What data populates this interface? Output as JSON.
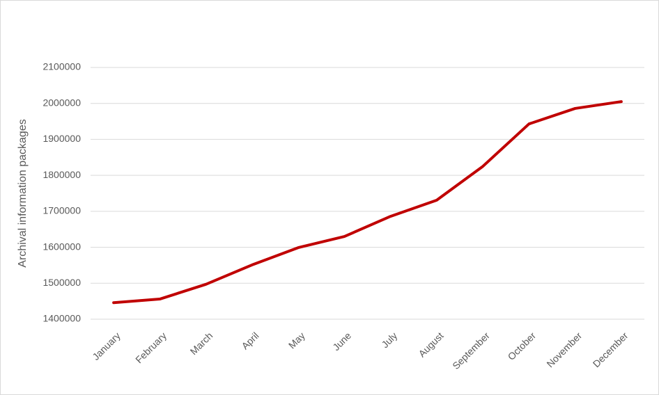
{
  "chart_data": {
    "type": "line",
    "y_label": "Archival information packages",
    "categories": [
      "January",
      "February",
      "March",
      "April",
      "May",
      "June",
      "July",
      "August",
      "September",
      "October",
      "November",
      "December"
    ],
    "series": [
      {
        "name": "Archival information packages",
        "color": "#c00000",
        "values": [
          1446000,
          1456000,
          1497000,
          1551000,
          1599000,
          1630000,
          1686000,
          1731000,
          1825000,
          1943000,
          1986000,
          2005000
        ]
      }
    ],
    "ylim": [
      1400000,
      2100000
    ],
    "yticks": [
      1400000,
      1500000,
      1600000,
      1700000,
      1800000,
      1900000,
      2000000,
      2100000
    ],
    "grid": true
  }
}
